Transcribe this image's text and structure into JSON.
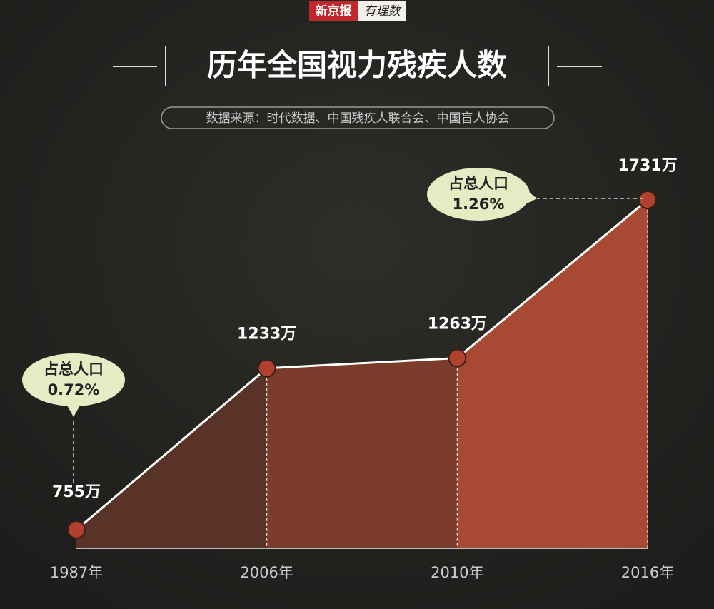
{
  "logo": {
    "left": "新京报",
    "right": "有理数"
  },
  "chart_data": {
    "type": "area",
    "title": "历年全国视力残疾人数",
    "subtitle": "数据来源：时代数据、中国残疾人联合会、中国盲人协会",
    "categories": [
      "1987年",
      "2006年",
      "2010年",
      "2016年"
    ],
    "values": [
      755,
      1233,
      1263,
      1731
    ],
    "value_labels": [
      "755万",
      "1233万",
      "1263万",
      "1731万"
    ],
    "line_color": "#ffffff",
    "marker_color": "#b0412f",
    "annotations": [
      {
        "lines": [
          "占总人口",
          "0.72%"
        ]
      },
      {
        "lines": [
          "占总人口",
          "1.26%"
        ]
      }
    ]
  }
}
